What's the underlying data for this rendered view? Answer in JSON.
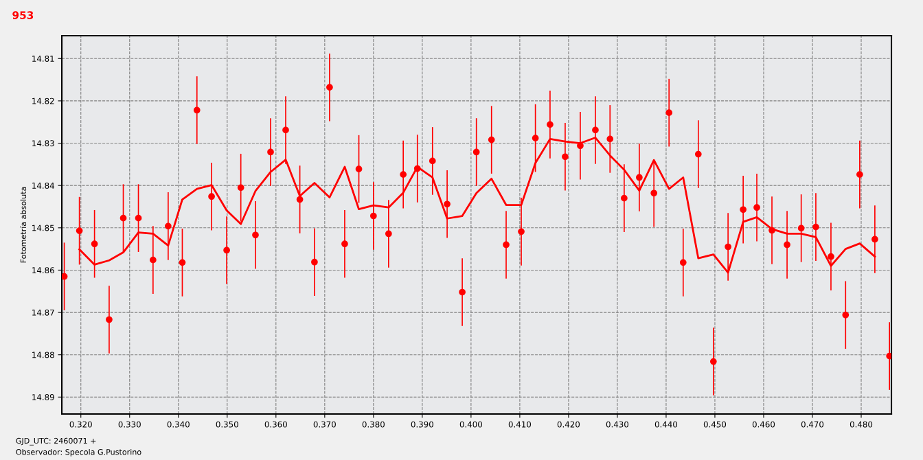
{
  "chart_data": {
    "type": "scatter",
    "title": "953",
    "xlabel": "GJD_UTC: 2460071 +",
    "ylabel": "Fotometría absoluta",
    "annotations": [
      "Observador: Specola G.Pustorino"
    ],
    "xlim": [
      0.3161,
      0.4862
    ],
    "ylim": [
      14.894,
      14.8046
    ],
    "xticks": [
      {
        "value": 0.32,
        "label": "0.320"
      },
      {
        "value": 0.33,
        "label": "0.330"
      },
      {
        "value": 0.34,
        "label": "0.340"
      },
      {
        "value": 0.35,
        "label": "0.350"
      },
      {
        "value": 0.36,
        "label": "0.360"
      },
      {
        "value": 0.37,
        "label": "0.370"
      },
      {
        "value": 0.38,
        "label": "0.380"
      },
      {
        "value": 0.39,
        "label": "0.390"
      },
      {
        "value": 0.4,
        "label": "0.400"
      },
      {
        "value": 0.41,
        "label": "0.410"
      },
      {
        "value": 0.42,
        "label": "0.420"
      },
      {
        "value": 0.43,
        "label": "0.430"
      },
      {
        "value": 0.44,
        "label": "0.440"
      },
      {
        "value": 0.45,
        "label": "0.450"
      },
      {
        "value": 0.46,
        "label": "0.460"
      },
      {
        "value": 0.47,
        "label": "0.470"
      },
      {
        "value": 0.48,
        "label": "0.480"
      }
    ],
    "yticks": [
      14.81,
      14.82,
      14.83,
      14.84,
      14.85,
      14.86,
      14.87,
      14.88,
      14.89
    ],
    "grid": true,
    "line_style": "solid",
    "series": [
      {
        "color": "#ff0000",
        "marker": "circle",
        "x": [
          0.3166,
          0.3197,
          0.3228,
          0.3258,
          0.3287,
          0.3318,
          0.3348,
          0.3379,
          0.3408,
          0.3438,
          0.3468,
          0.3499,
          0.3528,
          0.3558,
          0.3589,
          0.362,
          0.3649,
          0.3679,
          0.371,
          0.3741,
          0.377,
          0.38,
          0.3831,
          0.3861,
          0.389,
          0.3921,
          0.3951,
          0.3982,
          0.4011,
          0.4042,
          0.4072,
          0.4103,
          0.4132,
          0.4162,
          0.4193,
          0.4224,
          0.4255,
          0.4285,
          0.4314,
          0.4345,
          0.4375,
          0.4406,
          0.4435,
          0.4466,
          0.4497,
          0.4527,
          0.4558,
          0.4586,
          0.4617,
          0.4648,
          0.4677,
          0.4707,
          0.4738,
          0.4768,
          0.4797,
          0.4828,
          0.4858
        ],
        "values": [
          14.8615,
          14.8507,
          14.8538,
          14.8717,
          14.8477,
          14.8477,
          14.8576,
          14.8496,
          14.8582,
          14.8222,
          14.8426,
          14.8553,
          14.8405,
          14.8517,
          14.8321,
          14.8269,
          14.8433,
          14.8581,
          14.8168,
          14.8538,
          14.8361,
          14.8472,
          14.8514,
          14.8374,
          14.836,
          14.8342,
          14.8444,
          14.8652,
          14.8321,
          14.8292,
          14.854,
          14.8509,
          14.8288,
          14.8256,
          14.8332,
          14.8306,
          14.8269,
          14.829,
          14.843,
          14.8381,
          14.8418,
          14.8228,
          14.8582,
          14.8326,
          14.8816,
          14.8545,
          14.8457,
          14.8452,
          14.8506,
          14.854,
          14.8501,
          14.8498,
          14.8568,
          14.8706,
          14.8374,
          14.8527,
          14.8803
        ],
        "errors": [
          0.008,
          0.008,
          0.008,
          0.008,
          0.008,
          0.008,
          0.008,
          0.008,
          0.008,
          0.008,
          0.008,
          0.008,
          0.008,
          0.008,
          0.008,
          0.008,
          0.008,
          0.008,
          0.008,
          0.008,
          0.008,
          0.008,
          0.008,
          0.008,
          0.008,
          0.008,
          0.008,
          0.008,
          0.008,
          0.008,
          0.008,
          0.008,
          0.008,
          0.008,
          0.008,
          0.008,
          0.008,
          0.008,
          0.008,
          0.008,
          0.008,
          0.008,
          0.008,
          0.008,
          0.008,
          0.008,
          0.008,
          0.008,
          0.008,
          0.008,
          0.008,
          0.008,
          0.008,
          0.008,
          0.008,
          0.008,
          0.008
        ]
      },
      {
        "type": "line",
        "color": "#ff0000",
        "marker": "none",
        "x": [
          0.3197,
          0.3228,
          0.3258,
          0.3287,
          0.3318,
          0.3348,
          0.3379,
          0.3408,
          0.3438,
          0.3468,
          0.3499,
          0.3528,
          0.3558,
          0.3589,
          0.362,
          0.3649,
          0.3679,
          0.371,
          0.3741,
          0.377,
          0.38,
          0.3831,
          0.3861,
          0.389,
          0.3921,
          0.3951,
          0.3982,
          0.4011,
          0.4042,
          0.4072,
          0.4103,
          0.4132,
          0.4162,
          0.4193,
          0.4224,
          0.4255,
          0.4285,
          0.4314,
          0.4345,
          0.4375,
          0.4406,
          0.4435,
          0.4466,
          0.4497,
          0.4527,
          0.4558,
          0.4586,
          0.4617,
          0.4648,
          0.4677,
          0.4707,
          0.4738,
          0.4768,
          0.4797,
          0.4828
        ],
        "values": [
          14.8551,
          14.8587,
          14.8577,
          14.8558,
          14.8511,
          14.8514,
          14.8542,
          14.8433,
          14.8408,
          14.8399,
          14.8459,
          14.8491,
          14.8413,
          14.8368,
          14.8339,
          14.8425,
          14.8394,
          14.8428,
          14.8356,
          14.8456,
          14.8447,
          14.8452,
          14.8417,
          14.8356,
          14.8381,
          14.8478,
          14.8472,
          14.8418,
          14.8384,
          14.8446,
          14.8446,
          14.8347,
          14.829,
          14.8296,
          14.83,
          14.8287,
          14.8329,
          14.8363,
          14.8412,
          14.834,
          14.8408,
          14.8381,
          14.8572,
          14.8563,
          14.8606,
          14.8486,
          14.8475,
          14.8503,
          14.8514,
          14.8514,
          14.8522,
          14.859,
          14.855,
          14.8537,
          14.8568
        ]
      }
    ]
  }
}
